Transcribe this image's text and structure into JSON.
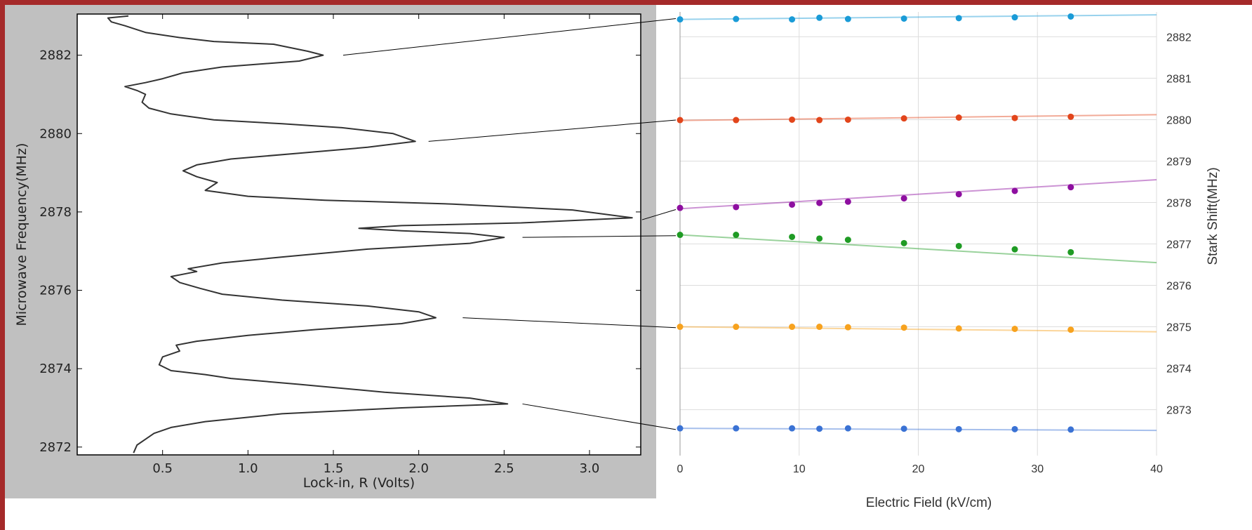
{
  "chart_data": [
    {
      "type": "line",
      "xlabel": "Lock-in, R (Volts)",
      "ylabel": "Microwave Frequency(MHz)",
      "xlim": [
        0,
        3.3
      ],
      "ylim": [
        2871.8,
        2883.05
      ],
      "xticks": [
        "0.5",
        "1.0",
        "1.5",
        "2.0",
        "2.5",
        "3.0"
      ],
      "xtick_values": [
        0.5,
        1.0,
        1.5,
        2.0,
        2.5,
        3.0
      ],
      "yticks": [
        "2872",
        "2874",
        "2876",
        "2878",
        "2880",
        "2882"
      ],
      "ytick_values": [
        2872,
        2874,
        2876,
        2878,
        2880,
        2882
      ],
      "background": "#c0c0c0",
      "line_color": "#333333",
      "series": [
        {
          "points": [
            [
              0.3,
              2883.0
            ],
            [
              0.18,
              2882.95
            ],
            [
              0.2,
              2882.85
            ],
            [
              0.28,
              2882.75
            ],
            [
              0.4,
              2882.58
            ],
            [
              0.6,
              2882.45
            ],
            [
              0.8,
              2882.35
            ],
            [
              1.15,
              2882.28
            ],
            [
              1.35,
              2882.1
            ],
            [
              1.44,
              2882.0
            ],
            [
              1.3,
              2881.85
            ],
            [
              0.85,
              2881.7
            ],
            [
              0.62,
              2881.55
            ],
            [
              0.5,
              2881.4
            ],
            [
              0.4,
              2881.3
            ],
            [
              0.28,
              2881.2
            ],
            [
              0.35,
              2881.1
            ],
            [
              0.4,
              2881.0
            ],
            [
              0.38,
              2880.8
            ],
            [
              0.42,
              2880.65
            ],
            [
              0.55,
              2880.5
            ],
            [
              0.8,
              2880.35
            ],
            [
              1.2,
              2880.25
            ],
            [
              1.55,
              2880.15
            ],
            [
              1.85,
              2880.0
            ],
            [
              1.98,
              2879.8
            ],
            [
              1.7,
              2879.65
            ],
            [
              1.3,
              2879.5
            ],
            [
              0.9,
              2879.35
            ],
            [
              0.7,
              2879.2
            ],
            [
              0.62,
              2879.05
            ],
            [
              0.7,
              2878.9
            ],
            [
              0.82,
              2878.75
            ],
            [
              0.75,
              2878.55
            ],
            [
              1.0,
              2878.4
            ],
            [
              1.45,
              2878.3
            ],
            [
              2.2,
              2878.2
            ],
            [
              2.9,
              2878.05
            ],
            [
              3.25,
              2877.85
            ],
            [
              2.6,
              2877.72
            ],
            [
              1.9,
              2877.65
            ],
            [
              1.65,
              2877.58
            ],
            [
              1.9,
              2877.52
            ],
            [
              2.3,
              2877.45
            ],
            [
              2.5,
              2877.35
            ],
            [
              2.3,
              2877.2
            ],
            [
              1.7,
              2877.05
            ],
            [
              1.2,
              2876.85
            ],
            [
              0.85,
              2876.7
            ],
            [
              0.65,
              2876.55
            ],
            [
              0.7,
              2876.48
            ],
            [
              0.55,
              2876.35
            ],
            [
              0.6,
              2876.2
            ],
            [
              0.72,
              2876.05
            ],
            [
              0.85,
              2875.9
            ],
            [
              1.2,
              2875.75
            ],
            [
              1.7,
              2875.6
            ],
            [
              2.0,
              2875.45
            ],
            [
              2.1,
              2875.3
            ],
            [
              1.9,
              2875.15
            ],
            [
              1.4,
              2875.0
            ],
            [
              1.0,
              2874.85
            ],
            [
              0.7,
              2874.7
            ],
            [
              0.58,
              2874.6
            ],
            [
              0.6,
              2874.45
            ],
            [
              0.5,
              2874.3
            ],
            [
              0.48,
              2874.1
            ],
            [
              0.55,
              2873.95
            ],
            [
              0.75,
              2873.85
            ],
            [
              0.9,
              2873.75
            ],
            [
              1.3,
              2873.6
            ],
            [
              1.8,
              2873.4
            ],
            [
              2.3,
              2873.25
            ],
            [
              2.52,
              2873.1
            ],
            [
              1.9,
              2873.0
            ],
            [
              1.2,
              2872.85
            ],
            [
              0.75,
              2872.65
            ],
            [
              0.55,
              2872.5
            ],
            [
              0.45,
              2872.35
            ],
            [
              0.4,
              2872.2
            ],
            [
              0.35,
              2872.05
            ],
            [
              0.33,
              2871.85
            ]
          ]
        }
      ]
    },
    {
      "type": "scatter",
      "xlabel": "Electric Field (kV/cm)",
      "ylabel": "Stark Shift(MHz)",
      "xlim": [
        0,
        40
      ],
      "ylim": [
        2872.4,
        2882.6
      ],
      "xticks": [
        "0",
        "10",
        "20",
        "30",
        "40"
      ],
      "xtick_values": [
        0,
        10,
        20,
        30,
        40
      ],
      "yticks": [
        "2873",
        "2874",
        "2875",
        "2876",
        "2877",
        "2878",
        "2879",
        "2880",
        "2881",
        "2882"
      ],
      "ytick_values": [
        2873,
        2874,
        2875,
        2876,
        2877,
        2878,
        2879,
        2880,
        2881,
        2882
      ],
      "grid": true,
      "x": [
        0,
        4.7,
        9.4,
        11.7,
        14.1,
        18.8,
        23.4,
        28.1,
        32.8
      ],
      "series": [
        {
          "color": "#1a9bd7",
          "fit": [
            2882.42,
            2882.53
          ],
          "values": [
            2882.42,
            2882.43,
            2882.42,
            2882.46,
            2882.43,
            2882.44,
            2882.45,
            2882.47,
            2882.49
          ]
        },
        {
          "color": "#e2451b",
          "fit": [
            2879.98,
            2880.12
          ],
          "values": [
            2879.99,
            2879.99,
            2880.0,
            2879.99,
            2880.0,
            2880.03,
            2880.05,
            2880.04,
            2880.07
          ]
        },
        {
          "color": "#8e0fa0",
          "fit": [
            2877.85,
            2878.55
          ],
          "values": [
            2877.87,
            2877.89,
            2877.95,
            2877.99,
            2878.02,
            2878.1,
            2878.2,
            2878.28,
            2878.37
          ]
        },
        {
          "color": "#1f9b24",
          "fit": [
            2877.22,
            2876.55
          ],
          "values": [
            2877.22,
            2877.22,
            2877.17,
            2877.13,
            2877.1,
            2877.02,
            2876.95,
            2876.87,
            2876.8
          ]
        },
        {
          "color": "#f7a21e",
          "fit": [
            2875.0,
            2874.88
          ],
          "values": [
            2875.0,
            2875.0,
            2875.0,
            2875.0,
            2874.99,
            2874.98,
            2874.96,
            2874.95,
            2874.93
          ]
        },
        {
          "color": "#3a72d4",
          "fit": [
            2872.55,
            2872.5
          ],
          "values": [
            2872.55,
            2872.55,
            2872.55,
            2872.54,
            2872.55,
            2872.54,
            2872.53,
            2872.53,
            2872.52
          ]
        }
      ]
    }
  ],
  "connectors": [
    {
      "from": [
        1.5,
        2882.0
      ],
      "to_y": 2882.44
    },
    {
      "from": [
        2.0,
        2879.8
      ],
      "to_y": 2879.99
    },
    {
      "from": [
        3.25,
        2877.8
      ],
      "to_y": 2877.83
    },
    {
      "from": [
        2.55,
        2877.35
      ],
      "to_y": 2877.2
    },
    {
      "from": [
        2.2,
        2875.3
      ],
      "to_y": 2874.98
    },
    {
      "from": [
        2.55,
        2873.1
      ],
      "to_y": 2872.52
    }
  ]
}
